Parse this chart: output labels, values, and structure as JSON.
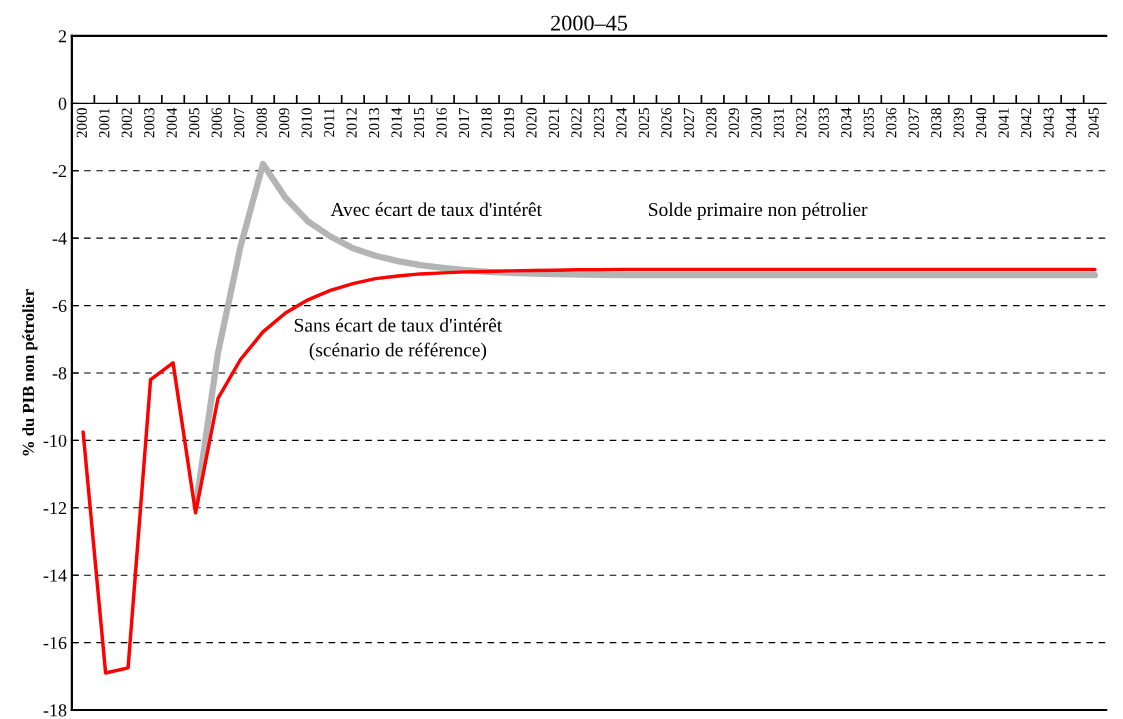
{
  "chart_data": {
    "type": "line",
    "title": "2000–45",
    "ylabel": "% du PIB non pétrolier",
    "categories": [
      "2000",
      "2001",
      "2002",
      "2003",
      "2004",
      "2005",
      "2006",
      "2007",
      "2008",
      "2009",
      "2010",
      "2011",
      "2012",
      "2013",
      "2014",
      "2015",
      "2016",
      "2017",
      "2018",
      "2019",
      "2020",
      "2021",
      "2022",
      "2023",
      "2024",
      "2025",
      "2026",
      "2027",
      "2028",
      "2029",
      "2030",
      "2031",
      "2032",
      "2033",
      "2034",
      "2035",
      "2036",
      "2037",
      "2038",
      "2039",
      "2040",
      "2041",
      "2042",
      "2043",
      "2044",
      "2045"
    ],
    "series": [
      {
        "name": "Avec écart de taux d'intérêt",
        "color": "#b4b4b4",
        "values": [
          null,
          null,
          null,
          null,
          null,
          -12.0,
          -7.4,
          -4.25,
          -1.8,
          -2.8,
          -3.5,
          -3.95,
          -4.3,
          -4.52,
          -4.68,
          -4.8,
          -4.88,
          -4.95,
          -5.0,
          -5.03,
          -5.05,
          -5.07,
          -5.08,
          -5.09,
          -5.1,
          -5.1,
          -5.1,
          -5.1,
          -5.1,
          -5.1,
          -5.1,
          -5.1,
          -5.1,
          -5.1,
          -5.1,
          -5.1,
          -5.1,
          -5.1,
          -5.1,
          -5.1,
          -5.1,
          -5.1,
          -5.1,
          -5.1,
          -5.1,
          -5.1
        ]
      },
      {
        "name": "Sans écart de taux d'intérêt\n(scénario de référence)",
        "color": "#ff0000",
        "values": [
          -9.75,
          -16.9,
          -16.75,
          -8.2,
          -7.7,
          -12.15,
          -8.75,
          -7.6,
          -6.78,
          -6.22,
          -5.83,
          -5.55,
          -5.35,
          -5.2,
          -5.12,
          -5.06,
          -5.03,
          -5.0,
          -4.99,
          -4.97,
          -4.96,
          -4.95,
          -4.94,
          -4.94,
          -4.93,
          -4.93,
          -4.93,
          -4.93,
          -4.93,
          -4.93,
          -4.93,
          -4.93,
          -4.93,
          -4.93,
          -4.93,
          -4.93,
          -4.93,
          -4.93,
          -4.93,
          -4.93,
          -4.93,
          -4.93,
          -4.93,
          -4.93,
          -4.93,
          -4.93
        ]
      }
    ],
    "annotations": [
      "Solde primaire non pétrolier"
    ],
    "ylim": [
      -18,
      2
    ],
    "yticks": [
      -18,
      -16,
      -14,
      -12,
      -10,
      -8,
      -6,
      -4,
      -2,
      0,
      2
    ],
    "grid": "y",
    "legend": false,
    "line_style": "solid",
    "marker": "none"
  }
}
